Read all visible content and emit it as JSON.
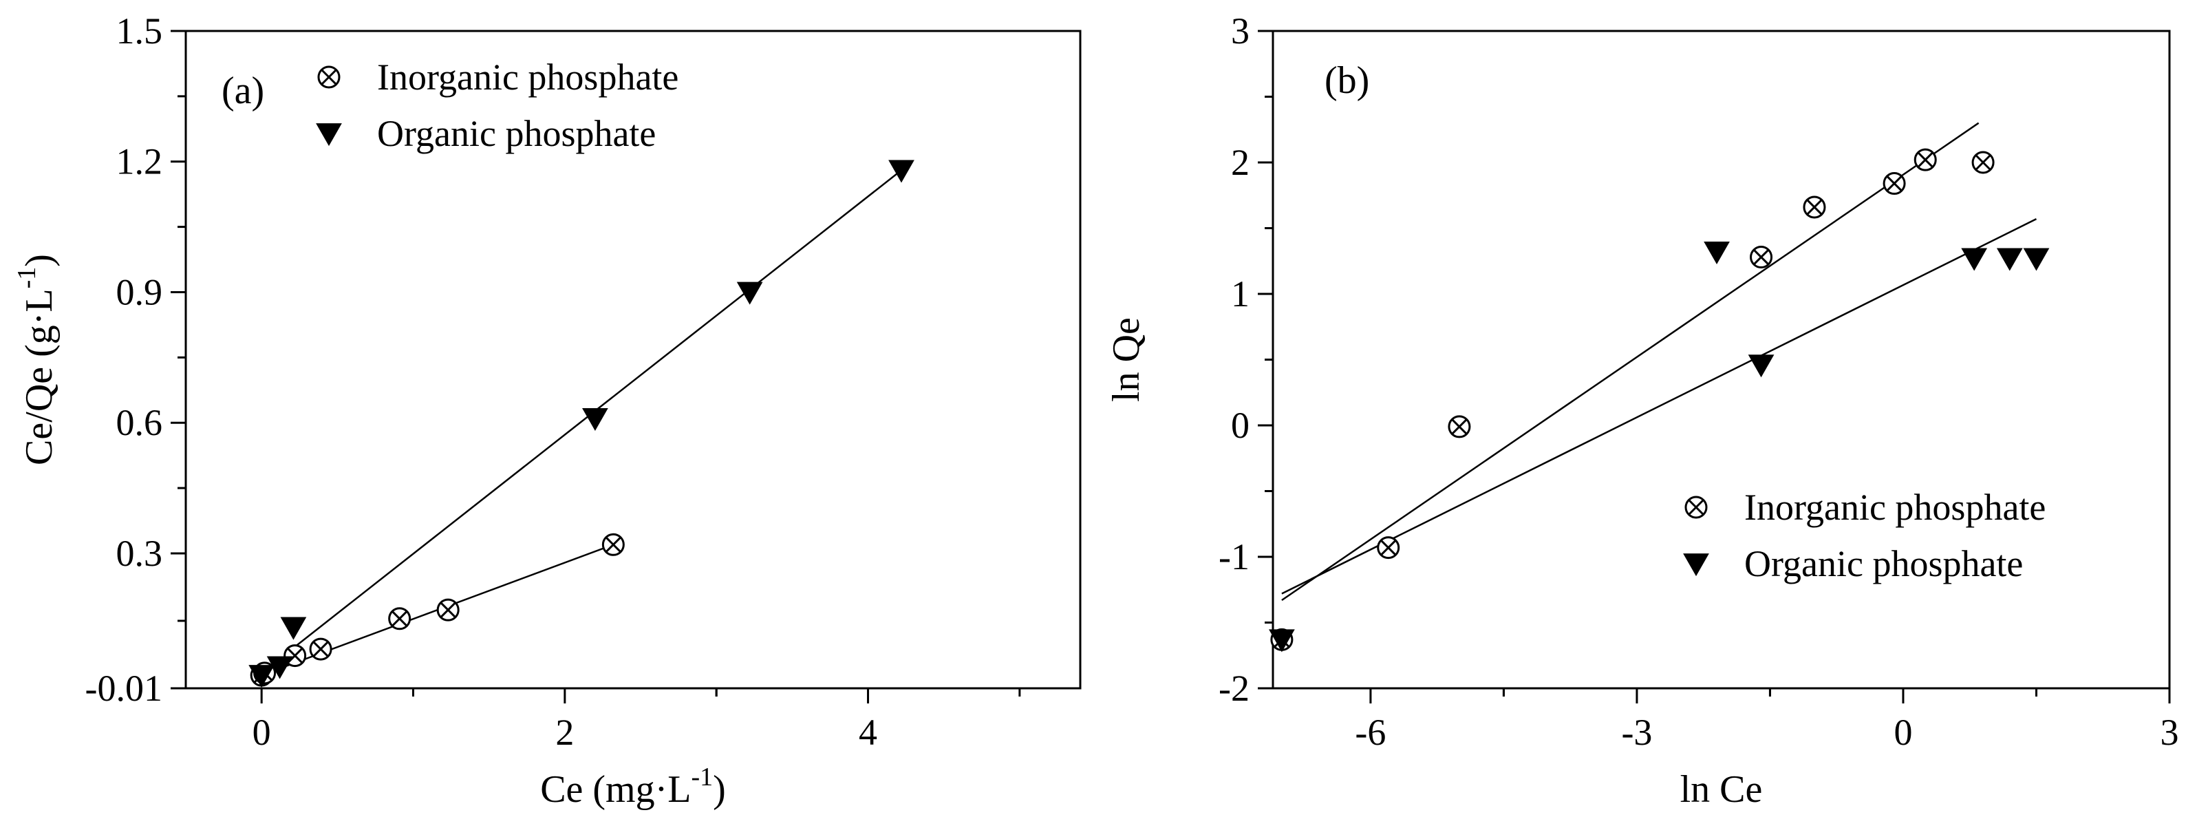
{
  "chart_data": [
    {
      "type": "scatter",
      "panel_label": "(a)",
      "xlabel": "Ce (mg·L",
      "xlabel_sup": "-1",
      "xlabel_end": ")",
      "ylabel": "Ce/Qe (g·L",
      "ylabel_sup": "-1",
      "ylabel_end": ")",
      "xlim": [
        -0.5,
        5.4
      ],
      "ylim": [
        -0.01,
        1.5
      ],
      "xticks": [
        0,
        2,
        4
      ],
      "xtick_labels": [
        "0",
        "2",
        "4"
      ],
      "yticks": [
        -0.01,
        0.3,
        0.6,
        0.9,
        1.2,
        1.5
      ],
      "ytick_labels": [
        "-0.01",
        "0.3",
        "0.6",
        "0.9",
        "1.2",
        "1.5"
      ],
      "legend_position": "top-left",
      "series": [
        {
          "name": "Inorganic phosphate",
          "marker": "circle-x",
          "x": [
            0.0,
            0.02,
            0.22,
            0.39,
            0.91,
            1.23,
            2.32
          ],
          "y": [
            0.02,
            0.025,
            0.065,
            0.08,
            0.15,
            0.17,
            0.32
          ],
          "fit": {
            "x": [
              0.0,
              2.32
            ],
            "y": [
              0.02,
              0.32
            ]
          }
        },
        {
          "name": "Organic phosphate",
          "marker": "triangle-down",
          "x": [
            0.0,
            0.12,
            0.21,
            2.2,
            3.22,
            4.22
          ],
          "y": [
            0.02,
            0.04,
            0.13,
            0.61,
            0.9,
            1.18
          ],
          "fit": {
            "x": [
              0.2,
              4.22
            ],
            "y": [
              0.08,
              1.18
            ]
          }
        }
      ]
    },
    {
      "type": "scatter",
      "panel_label": "(b)",
      "xlabel": "ln Ce",
      "ylabel": "ln Qe",
      "xlim": [
        -7.1,
        3
      ],
      "ylim": [
        -2,
        3
      ],
      "xticks": [
        -6,
        -3,
        0,
        3
      ],
      "xtick_labels": [
        "-6",
        "-3",
        "0",
        "3"
      ],
      "yticks": [
        -2,
        -1,
        0,
        1,
        2,
        3
      ],
      "ytick_labels": [
        "-2",
        "-1",
        "0",
        "1",
        "2",
        "3"
      ],
      "legend_position": "bottom-right",
      "series": [
        {
          "name": "Inorganic phosphate",
          "marker": "circle-x",
          "x": [
            -7.0,
            -5.8,
            -5.0,
            -1.6,
            -1.0,
            -0.1,
            0.25,
            0.9
          ],
          "y": [
            -1.63,
            -0.93,
            -0.01,
            1.28,
            1.66,
            1.84,
            2.02,
            2.0
          ],
          "fit": {
            "x": [
              -7.0,
              0.85
            ],
            "y": [
              -1.33,
              2.3
            ]
          }
        },
        {
          "name": "Organic phosphate",
          "marker": "triangle-down",
          "x": [
            -7.0,
            -2.1,
            -1.6,
            0.8,
            1.2,
            1.5
          ],
          "y": [
            -1.63,
            1.32,
            0.46,
            1.27,
            1.27,
            1.27
          ],
          "fit": {
            "x": [
              -7.0,
              1.5
            ],
            "y": [
              -1.28,
              1.57
            ]
          }
        }
      ]
    }
  ]
}
